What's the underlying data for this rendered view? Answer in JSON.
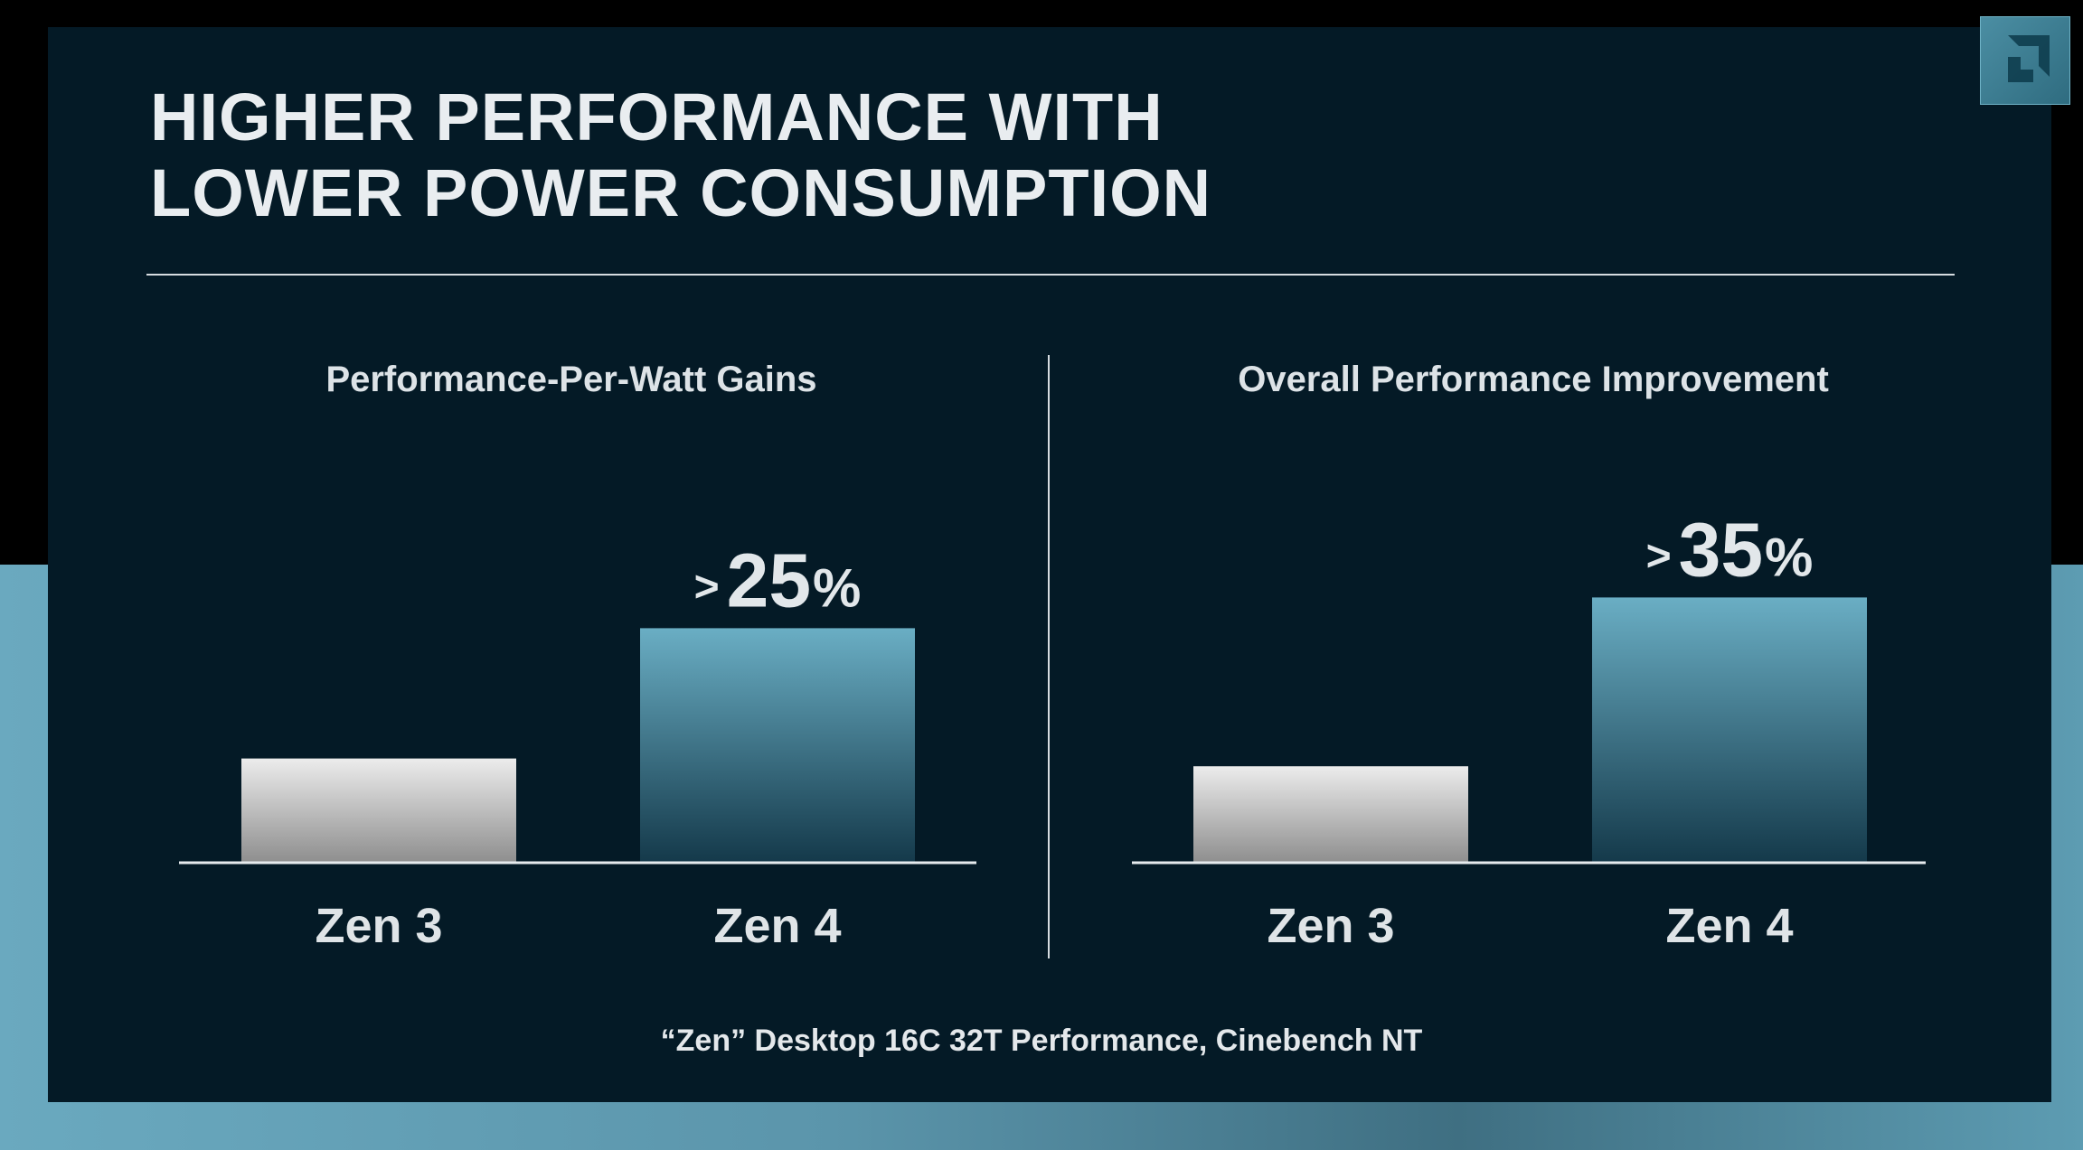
{
  "slide": {
    "title": "HIGHER PERFORMANCE WITH\nLOWER POWER CONSUMPTION",
    "footnote": "“Zen” Desktop 16C 32T Performance, Cinebench NT",
    "logo_icon": "amd-arrow-logo-icon"
  },
  "colors": {
    "slide_bg": "#041a26",
    "baseline_bar_top": "#ececec",
    "baseline_bar_bottom": "#8e8e8e",
    "highlight_bar_top": "#6aaec4",
    "highlight_bar_bottom": "#14394a",
    "text": "#e2e7ea"
  },
  "chart_data": [
    {
      "type": "bar",
      "title": "Performance-Per-Watt Gains",
      "categories": [
        "Zen 3",
        "Zen 4"
      ],
      "values": [
        1.0,
        2.25
      ],
      "annotation": {
        "prefix": ">",
        "number": "25",
        "suffix": "%"
      },
      "xlabel": "",
      "ylabel": "",
      "ylim": [
        0,
        2.6
      ],
      "grid": false
    },
    {
      "type": "bar",
      "title": "Overall Performance Improvement",
      "categories": [
        "Zen 3",
        "Zen 4"
      ],
      "values": [
        1.0,
        2.75
      ],
      "annotation": {
        "prefix": ">",
        "number": "35",
        "suffix": "%"
      },
      "xlabel": "",
      "ylabel": "",
      "ylim": [
        0,
        3.1
      ],
      "grid": false
    }
  ]
}
